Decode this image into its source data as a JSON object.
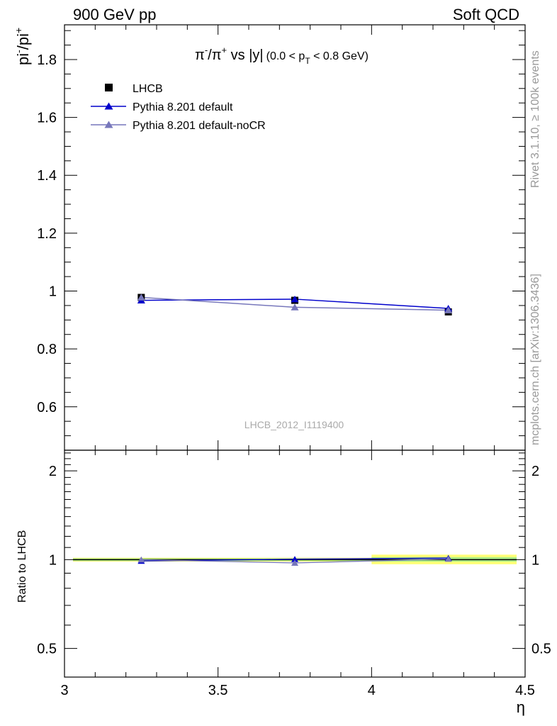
{
  "header": {
    "left": "900 GeV pp",
    "right": "Soft QCD"
  },
  "side_text": {
    "rivet": "Rivet 3.1.10, ≥ 100k events",
    "mcplots": "mcplots.cern.ch [arXiv:1306.3436]"
  },
  "main_panel": {
    "title_parts": {
      "a": "π",
      "a_sup": "-",
      "b": "/π",
      "b_sup": "+",
      "c": " vs |y|",
      "d": "(0.0 < p",
      "d_sub": "T",
      "e": " < 0.8 GeV)"
    },
    "ylabel": {
      "base": "pi",
      "sup1": "-",
      "mid": "/pi",
      "sup2": "+"
    },
    "watermark": "LHCB_2012_I1119400",
    "yticks": [
      "0.6",
      "0.8",
      "1",
      "1.2",
      "1.4",
      "1.6",
      "1.8"
    ]
  },
  "ratio_panel": {
    "ylabel": "Ratio to LHCB",
    "yticks": [
      "0.5",
      "1",
      "2"
    ]
  },
  "xaxis": {
    "label": "η",
    "ticks": [
      "3",
      "3.5",
      "4",
      "4.5"
    ]
  },
  "legend": [
    {
      "label": "LHCB",
      "marker": "square",
      "color": "#000000"
    },
    {
      "label": "Pythia 8.201 default",
      "marker": "triangle",
      "color": "#0000cc"
    },
    {
      "label": "Pythia 8.201 default-noCR",
      "marker": "triangle",
      "color": "#7777bb"
    }
  ],
  "chart_data": [
    {
      "type": "line",
      "xlim": [
        3.0,
        4.5
      ],
      "ylim": [
        0.45,
        1.92
      ],
      "x": [
        3.25,
        3.75,
        4.25
      ],
      "series": [
        {
          "name": "LHCB",
          "values": [
            0.978,
            0.968,
            0.928
          ],
          "color": "#000000"
        },
        {
          "name": "Pythia 8.201 default",
          "values": [
            0.968,
            0.972,
            0.94
          ],
          "color": "#0000cc"
        },
        {
          "name": "Pythia 8.201 default-noCR",
          "values": [
            0.978,
            0.944,
            0.934
          ],
          "color": "#7777bb"
        }
      ]
    },
    {
      "type": "line",
      "scale": "log",
      "xlim": [
        3.0,
        4.5
      ],
      "ylim": [
        0.4,
        2.35
      ],
      "x": [
        3.25,
        3.75,
        4.25
      ],
      "bands": {
        "yellow": {
          "x": [
            [
              3.0,
              3.5
            ],
            [
              3.5,
              4.0
            ],
            [
              4.0,
              4.5
            ]
          ],
          "lo": [
            0.985,
            0.985,
            0.965
          ],
          "hi": [
            1.015,
            1.015,
            1.04
          ],
          "color": "#ffff77"
        },
        "green": {
          "x": [
            [
              3.0,
              3.5
            ],
            [
              3.5,
              4.0
            ],
            [
              4.0,
              4.5
            ]
          ],
          "lo": [
            0.99,
            0.99,
            0.985
          ],
          "hi": [
            1.01,
            1.01,
            1.02
          ],
          "color": "#aaee88"
        }
      },
      "series": [
        {
          "name": "Pythia 8.201 default",
          "values": [
            0.99,
            1.004,
            1.013
          ],
          "color": "#0000cc"
        },
        {
          "name": "Pythia 8.201 default-noCR",
          "values": [
            1.0,
            0.975,
            1.006
          ],
          "color": "#7777bb"
        }
      ]
    }
  ]
}
